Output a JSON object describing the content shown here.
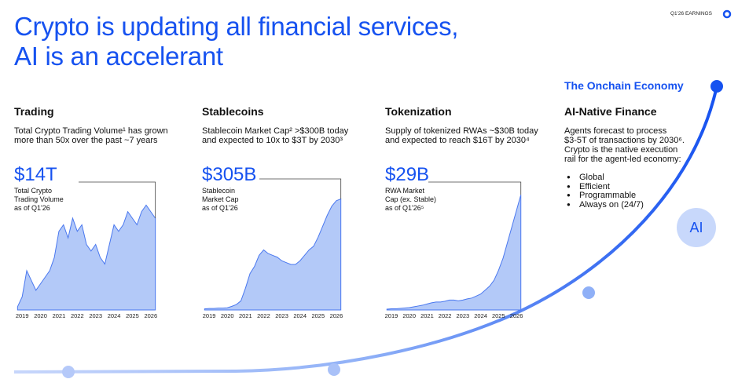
{
  "header": {
    "title": [
      "Crypto is updating all financial services,",
      "AI is an accelerant"
    ],
    "badge": "Q1'26 EARNINGS"
  },
  "chart_data": [
    {
      "type": "area",
      "title": "Trading",
      "description": [
        "Total Crypto Trading Volume¹ has grown",
        "more than 50x over the past ~7 years"
      ],
      "annotation": "$14T",
      "note": [
        "Total Crypto",
        "Trading Volume",
        "as of Q1'26"
      ],
      "color": "#b3c9f8",
      "x": [
        2018.75,
        2019,
        2019.25,
        2019.5,
        2019.75,
        2020,
        2020.25,
        2020.5,
        2020.75,
        2021,
        2021.25,
        2021.5,
        2021.75,
        2022,
        2022.25,
        2022.5,
        2022.75,
        2023,
        2023.25,
        2023.5,
        2023.75,
        2024,
        2024.25,
        2024.5,
        2024.75,
        2025,
        2025.25,
        2025.5,
        2025.75,
        2026,
        2026.25
      ],
      "values": [
        0.5,
        2,
        6,
        4.5,
        3,
        4,
        5,
        6,
        8,
        12,
        13,
        11,
        14,
        12,
        13,
        10,
        9,
        10,
        8,
        7,
        10,
        13,
        12,
        13,
        15,
        14,
        13,
        15,
        16,
        15,
        14
      ],
      "xlim": [
        2018.65,
        2026.35
      ],
      "ylim": [
        0,
        20
      ],
      "xticks": [
        2019,
        2020,
        2021,
        2022,
        2023,
        2024,
        2025,
        2026
      ]
    },
    {
      "type": "area",
      "title": "Stablecoins",
      "description": [
        "Stablecoin Market Cap² >$300B today",
        "and expected to 10x to $3T by 2030³"
      ],
      "annotation": "$305B",
      "note": [
        "Stablecoin",
        "Market Cap",
        "as of Q1'26"
      ],
      "color": "#b3c9f8",
      "x": [
        2018.75,
        2019,
        2019.25,
        2019.5,
        2019.75,
        2020,
        2020.25,
        2020.5,
        2020.75,
        2021,
        2021.25,
        2021.5,
        2021.75,
        2022,
        2022.25,
        2022.5,
        2022.75,
        2023,
        2023.25,
        2023.5,
        2023.75,
        2024,
        2024.25,
        2024.5,
        2024.75,
        2025,
        2025.25,
        2025.5,
        2025.75,
        2026,
        2026.25
      ],
      "values": [
        3,
        4,
        4,
        5,
        5,
        6,
        10,
        15,
        25,
        60,
        100,
        120,
        150,
        165,
        155,
        150,
        145,
        135,
        130,
        125,
        125,
        135,
        150,
        165,
        175,
        200,
        230,
        260,
        285,
        300,
        305
      ],
      "xlim": [
        2018.65,
        2026.35
      ],
      "ylim": [
        0,
        360
      ],
      "xticks": [
        2019,
        2020,
        2021,
        2022,
        2023,
        2024,
        2025,
        2026
      ]
    },
    {
      "type": "area",
      "title": "Tokenization",
      "description": [
        "Supply of tokenized RWAs ~$30B today",
        "and expected to reach $16T by 2030⁴"
      ],
      "annotation": "$29B",
      "note": [
        "RWA Market",
        "Cap (ex. Stable)",
        "as of Q1'26⁵"
      ],
      "color": "#b3c9f8",
      "x": [
        2018.75,
        2019,
        2019.25,
        2019.5,
        2019.75,
        2020,
        2020.25,
        2020.5,
        2020.75,
        2021,
        2021.25,
        2021.5,
        2021.75,
        2022,
        2022.25,
        2022.5,
        2022.75,
        2023,
        2023.25,
        2023.5,
        2023.75,
        2024,
        2024.25,
        2024.5,
        2024.75,
        2025,
        2025.25,
        2025.5,
        2025.75,
        2026,
        2026.25
      ],
      "values": [
        0.2,
        0.3,
        0.3,
        0.4,
        0.5,
        0.6,
        0.8,
        1,
        1.2,
        1.5,
        1.8,
        2,
        2,
        2.2,
        2.5,
        2.5,
        2.3,
        2.5,
        2.8,
        3,
        3.5,
        4,
        5,
        6,
        7.5,
        10,
        13,
        17,
        21,
        25,
        29
      ],
      "xlim": [
        2018.65,
        2026.35
      ],
      "ylim": [
        0,
        33
      ],
      "xticks": [
        2019,
        2020,
        2021,
        2022,
        2023,
        2024,
        2025,
        2026
      ]
    }
  ],
  "ai_finance": {
    "label": "The Onchain Economy",
    "title": "AI-Native Finance",
    "description": [
      "Agents forecast to process",
      "$3-5T of transactions by 2030⁶.",
      "Crypto is the native execution",
      "rail for the agent-led economy:"
    ],
    "bullets": [
      "Global",
      "Efficient",
      "Programmable",
      "Always on (24/7)"
    ],
    "badge": "AI"
  }
}
